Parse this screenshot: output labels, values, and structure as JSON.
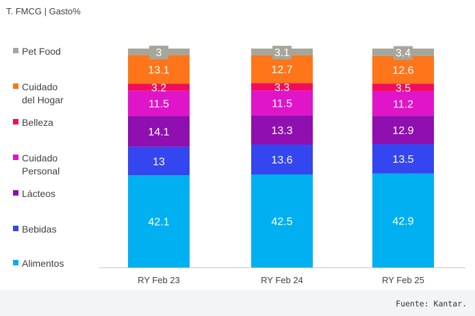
{
  "chart_data": {
    "type": "bar",
    "stacked": true,
    "title": "T. FMCG | Gasto%",
    "categories": [
      "RY Feb 23",
      "RY Feb 24",
      "RY Feb 25"
    ],
    "series": [
      {
        "name": "Alimentos",
        "values": [
          42.1,
          42.5,
          42.9
        ],
        "color": "#00b0f0"
      },
      {
        "name": "Bebidas",
        "values": [
          13,
          13.6,
          13.5
        ],
        "color": "#3346f0"
      },
      {
        "name": "Lácteos",
        "values": [
          14.1,
          13.3,
          12.9
        ],
        "color": "#8f0fb0"
      },
      {
        "name": "Cuidado Personal",
        "values": [
          11.5,
          11.5,
          11.2
        ],
        "color": "#e014c8"
      },
      {
        "name": "Belleza",
        "values": [
          3.2,
          3.3,
          3.5
        ],
        "color": "#f20c5e"
      },
      {
        "name": "Cuidado del Hogar",
        "values": [
          13.1,
          12.7,
          12.6
        ],
        "color": "#ff7519"
      },
      {
        "name": "Pet Food",
        "values": [
          3,
          3.1,
          3.4
        ],
        "color": "#a6a69a"
      }
    ],
    "legend_labels": [
      {
        "series": "Pet Food",
        "lines": [
          "Pet Food"
        ]
      },
      {
        "series": "Cuidado del Hogar",
        "lines": [
          "Cuidado",
          "del Hogar"
        ]
      },
      {
        "series": "Belleza",
        "lines": [
          "Belleza"
        ]
      },
      {
        "series": "Cuidado Personal",
        "lines": [
          "Cuidado",
          "Personal"
        ]
      },
      {
        "series": "Lácteos",
        "lines": [
          "Lácteos"
        ]
      },
      {
        "series": "Bebidas",
        "lines": [
          "Bebidas"
        ]
      },
      {
        "series": "Alimentos",
        "lines": [
          "Alimentos"
        ]
      }
    ],
    "ylim": [
      0,
      100
    ],
    "legend_position": "left",
    "grid": false,
    "xlabel": "",
    "ylabel": ""
  },
  "source_note": "Fuente: Kantar."
}
